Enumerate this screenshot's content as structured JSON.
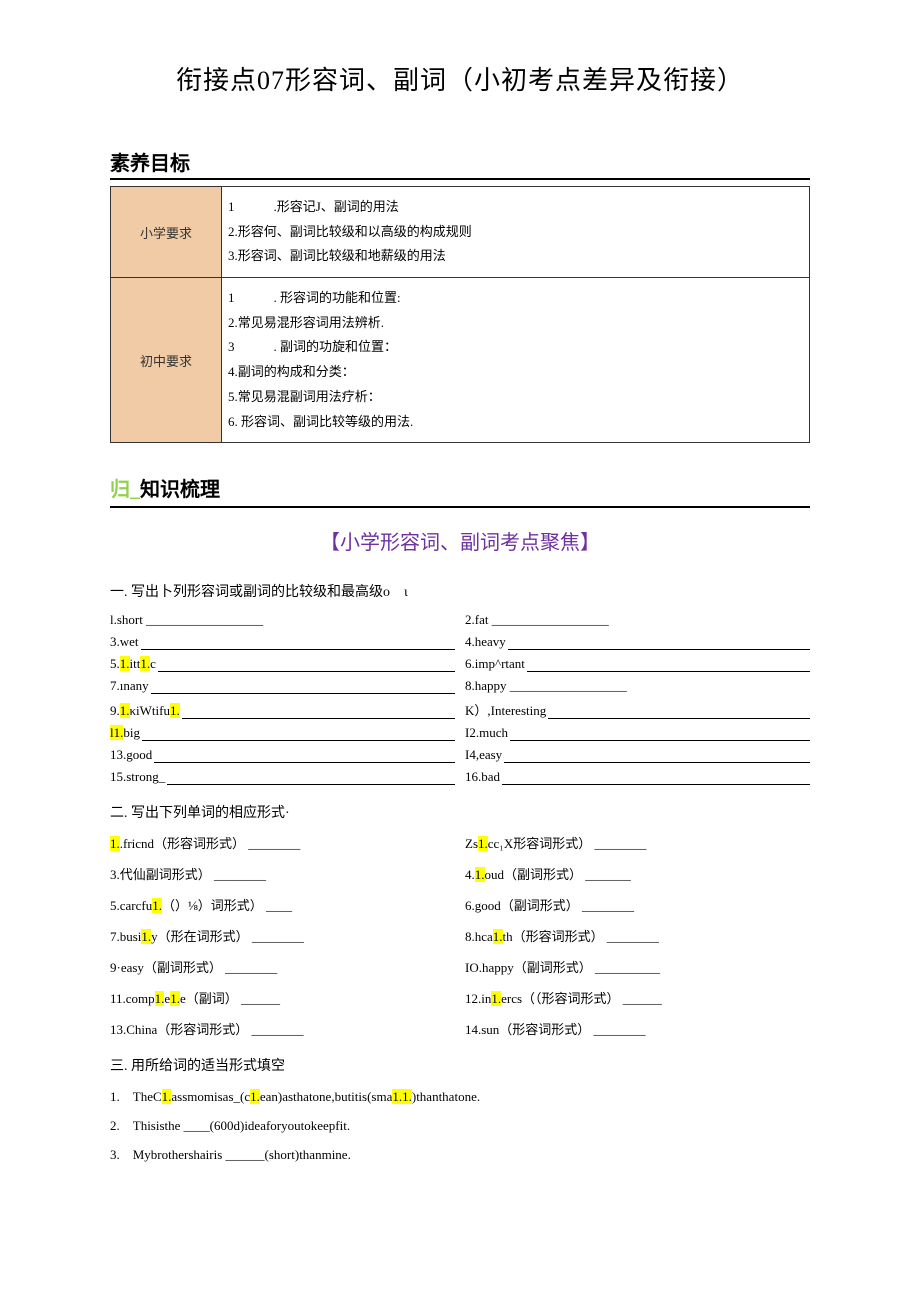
{
  "title": "衔接点07形容词、副词（小初考点差异及衔接）",
  "section_goal_header": "素养目标",
  "table": {
    "row1_label": "小学要求",
    "row1_content": "1　　　.形容记J、副词的用法\n2.形容何、副词比较级和以高级的构成规则\n3.形容词、副词比较级和地薪级的用法",
    "row2_label": "初中要求",
    "row2_content": "1　　　. 形容词的功能和位置:\n2.常见易混形容词用法辨析.\n3　　　. 副词的功旋和位置：\n4.副词的构成和分类：\n5.常见易混副词用法疗析：\n6. 形容词、副词比较等级的用法."
  },
  "knowledge_header_pre": "归_",
  "knowledge_header": "知识梳理",
  "focus_title": "【小学形容词、副词考点聚焦】",
  "ex1_title": "一. 写出卜列形容词或副词的比较级和最高级o　ι",
  "ex1": {
    "r1a": "l.short __________________",
    "r1b": "2.fat __________________",
    "r2a": "3.wet",
    "r2b": "4.heavy",
    "r3a_pre": "5.",
    "r3a_hl1": "1.",
    "r3a_mid": "itt",
    "r3a_hl2": "1.",
    "r3a_end": "c",
    "r3b": "6.imp^rtant",
    "r4a": "7.ınany",
    "r4b": "8.happy __________________",
    "r5a_pre": "9.",
    "r5a_hl1": "1.",
    "r5a_mid": "κiWtifu",
    "r5a_hl2": "1.",
    "r5b": "K）,Interesting",
    "r6a_pre": "l",
    "r6a_hl": "1.",
    "r6a_end": "big",
    "r6b": "I2.much",
    "r7a": "13.good",
    "r7b": "I4,easy",
    "r8a": "15.strong_",
    "r8b": "16.bad"
  },
  "ex2_title": "二. 写出下列单词的相应形式·",
  "ex2": {
    "r1a_hl": "1.",
    "r1a": ".fricnd（形容词形式） ________",
    "r1b_pre": "Zs",
    "r1b_hl": "1.",
    "r1b_end": "cc₁X形容词形式） ________",
    "r2a": "3.代仙副词形式） ________",
    "r2b_pre": "4.",
    "r2b_hl": "1.",
    "r2b_end": "oud（副词形式） _______",
    "r3a_pre": "5.carcfu",
    "r3a_hl": "1.",
    "r3a_end": "（）⅛）词形式） ____",
    "r3b": "6.good（副词形式） ________",
    "r4a_pre": "7.busi",
    "r4a_hl": "1.",
    "r4a_end": "y（形在词形式） ________",
    "r4b_pre": "8.hca",
    "r4b_hl": "1.",
    "r4b_end": "th（形容词形式） ________",
    "r5a": "9·easy（副词形式） ________",
    "r5b": "IO.happy（副词形式） __________",
    "r6a_pre": "11.comp",
    "r6a_hl1": "1.",
    "r6a_mid": "e",
    "r6a_hl2": "1.",
    "r6a_end": "e（副词） ______",
    "r6b_pre": "12.in",
    "r6b_hl": "1.",
    "r6b_end": "ercs（（形容词形式） ______",
    "r7a": "13.China（形容词形式） ________",
    "r7b": "14.sun（形容词形式） ________"
  },
  "ex3_title": "三. 用所给词的适当形式填空",
  "ex3_items": {
    "s1_pre": "1.　TheC",
    "s1_hl1": "1.",
    "s1_mid1": "assmomisas_(c",
    "s1_hl2": "1.",
    "s1_mid2": "ean)asthatone,butitis(sma",
    "s1_hl3": "1.1.",
    "s1_end": ")thanthatone.",
    "s2": "2.　Thisisthe ____(600d)ideaforyoutokeepfit.",
    "s3": "3.　Mybrothershairis ______(short)thanmine."
  }
}
